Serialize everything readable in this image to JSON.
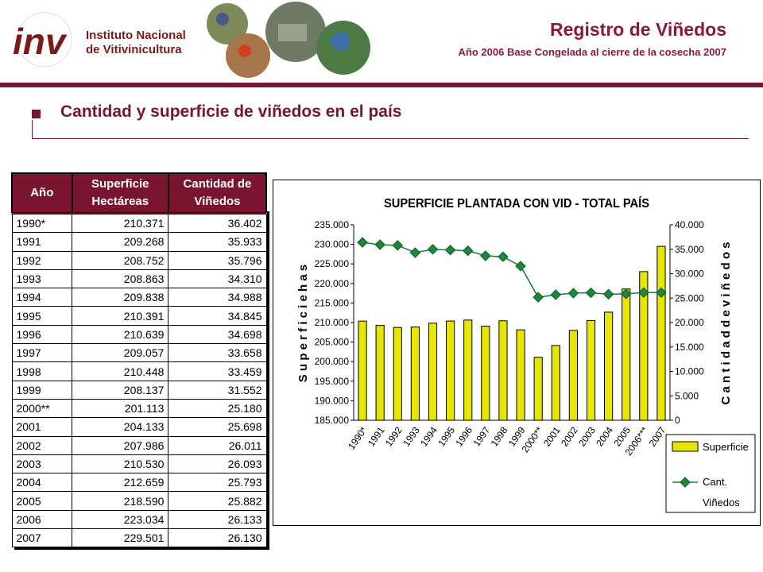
{
  "header": {
    "logo_line1": "Instituto Nacional",
    "logo_line2": "de Vitivinicultura",
    "title": "Registro de Viñedos",
    "subtitle": "Año 2006 Base Congelada al cierre de la cosecha 2007"
  },
  "section": {
    "title": "Cantidad y superficie de viñedos en el país"
  },
  "table": {
    "headers": {
      "year": "Año",
      "area1": "Superficie",
      "area2": "Hectáreas",
      "count1": "Cantidad de",
      "count2": "Viñedos"
    },
    "rows": [
      {
        "year": "1990*",
        "area": "210.371",
        "count": "36.402"
      },
      {
        "year": "1991",
        "area": "209.268",
        "count": "35.933"
      },
      {
        "year": "1992",
        "area": "208.752",
        "count": "35.796"
      },
      {
        "year": "1993",
        "area": "208.863",
        "count": "34.310"
      },
      {
        "year": "1994",
        "area": "209.838",
        "count": "34.988"
      },
      {
        "year": "1995",
        "area": "210.391",
        "count": "34.845"
      },
      {
        "year": "1996",
        "area": "210.639",
        "count": "34.698"
      },
      {
        "year": "1997",
        "area": "209.057",
        "count": "33.658"
      },
      {
        "year": "1998",
        "area": "210.448",
        "count": "33.459"
      },
      {
        "year": "1999",
        "area": "208.137",
        "count": "31.552"
      },
      {
        "year": "2000**",
        "area": "201.113",
        "count": "25.180"
      },
      {
        "year": "2001",
        "area": "204.133",
        "count": "25.698"
      },
      {
        "year": "2002",
        "area": "207.986",
        "count": "26.011"
      },
      {
        "year": "2003",
        "area": "210.530",
        "count": "26.093"
      },
      {
        "year": "2004",
        "area": "212.659",
        "count": "25.793"
      },
      {
        "year": "2005",
        "area": "218.590",
        "count": "25.882"
      },
      {
        "year": "2006",
        "area": "223.034",
        "count": "26.133"
      },
      {
        "year": "2007",
        "area": "229.501",
        "count": "26.130"
      }
    ]
  },
  "chart_data": {
    "type": "bar",
    "title": "SUPERFICIE PLANTADA CON VID - TOTAL PAÍS",
    "ylabel": "S u p e r f i c i e   h a s",
    "y2label": "C a n t i d a d   d e   v i ñ e d o s",
    "categories": [
      "1990*",
      "1991",
      "1992",
      "1993",
      "1994",
      "1995",
      "1996",
      "1997",
      "1998",
      "1999",
      "2000**",
      "2001",
      "2002",
      "2003",
      "2004",
      "2005",
      "2006***",
      "2007"
    ],
    "ylim": [
      185000,
      235000
    ],
    "y2lim": [
      0,
      40000
    ],
    "yticks": [
      "185.000",
      "190.000",
      "195.000",
      "200.000",
      "205.000",
      "210.000",
      "215.000",
      "220.000",
      "225.000",
      "230.000",
      "235.000"
    ],
    "y2ticks": [
      "0",
      "5.000",
      "10.000",
      "15.000",
      "20.000",
      "25.000",
      "30.000",
      "35.000",
      "40.000"
    ],
    "series": [
      {
        "name": "Superficie",
        "type": "bar",
        "color": "#e6e600",
        "values": [
          210371,
          209268,
          208752,
          208863,
          209838,
          210391,
          210639,
          209057,
          210448,
          208137,
          201113,
          204133,
          207986,
          210530,
          212659,
          218590,
          223034,
          229501
        ]
      },
      {
        "name": "Cant. Viñedos",
        "type": "line",
        "axis": "right",
        "color": "#1a7a3a",
        "values": [
          36402,
          35933,
          35796,
          34310,
          34988,
          34845,
          34698,
          33658,
          33459,
          31552,
          25180,
          25698,
          26011,
          26093,
          25793,
          25882,
          26133,
          26130
        ]
      }
    ],
    "legend": "bottom-right",
    "legend_labels": {
      "bar": "Superficie",
      "line1": "Cant.",
      "line2": "Viñedos"
    },
    "grid": false
  }
}
